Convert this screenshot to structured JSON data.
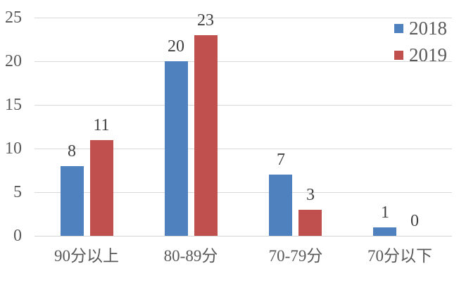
{
  "chart_data": {
    "type": "bar",
    "categories": [
      "90分以上",
      "80-89分",
      "70-79分",
      "70分以下"
    ],
    "series": [
      {
        "name": "2018",
        "color": "#4E81BD",
        "values": [
          8,
          20,
          7,
          1
        ]
      },
      {
        "name": "2019",
        "color": "#C0504D",
        "values": [
          11,
          23,
          3,
          0
        ]
      }
    ],
    "title": "",
    "xlabel": "",
    "ylabel": "",
    "ylim": [
      0,
      25
    ],
    "yticks": [
      0,
      5,
      10,
      15,
      20,
      25
    ],
    "grid": true,
    "data_labels": true,
    "legend_position": "top-right"
  },
  "colors": {
    "background": "#FFFFFF",
    "gridline": "#D9D9D9",
    "axis_line": "#D4D4D4",
    "tick_text": "#595959",
    "category_text": "#595959",
    "data_label_text": "#404040",
    "legend_text": "#595959"
  }
}
